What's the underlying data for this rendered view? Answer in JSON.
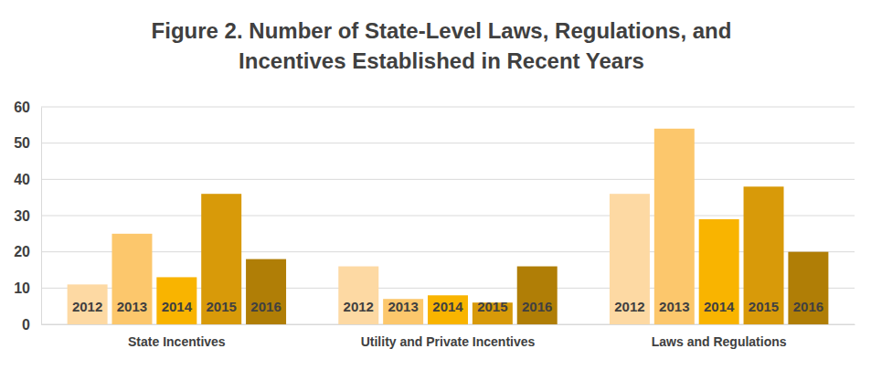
{
  "chart_data": {
    "type": "bar",
    "title": [
      "Figure 2. Number of State-Level Laws, Regulations, and",
      "Incentives Established in Recent Years"
    ],
    "categories": [
      "State Incentives",
      "Utility and Private Incentives",
      "Laws and Regulations"
    ],
    "series": [
      {
        "name": "2012",
        "color": "#fdd9a3",
        "values": [
          11,
          16,
          36
        ]
      },
      {
        "name": "2013",
        "color": "#fcc76c",
        "values": [
          25,
          7,
          54
        ]
      },
      {
        "name": "2014",
        "color": "#f9b400",
        "values": [
          13,
          8,
          29
        ]
      },
      {
        "name": "2015",
        "color": "#d89a09",
        "values": [
          36,
          6,
          38
        ]
      },
      {
        "name": "2016",
        "color": "#b07e06",
        "values": [
          18,
          16,
          20
        ]
      }
    ],
    "ylim": [
      0,
      60
    ],
    "yticks": [
      0,
      10,
      20,
      30,
      40,
      50,
      60
    ],
    "grid": true
  }
}
